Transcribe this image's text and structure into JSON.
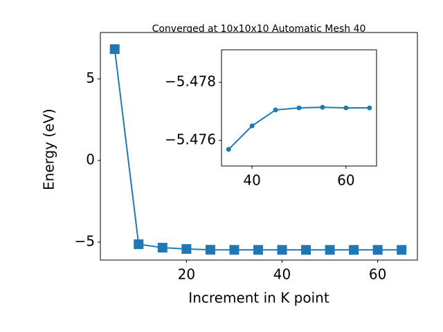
{
  "chart_data": [
    {
      "type": "line",
      "title": "Converged at 10x10x10 Automatic Mesh 40",
      "x_label": "Increment in K point",
      "y_label": "Energy (eV)",
      "x": [
        5,
        10,
        15,
        20,
        25,
        30,
        35,
        40,
        45,
        50,
        55,
        60,
        65
      ],
      "series": [
        {
          "color": "#1f77b4",
          "marker": "square",
          "values": [
            6.82,
            -5.13,
            -5.34,
            -5.42,
            -5.47,
            -5.4755,
            -5.47569,
            -5.4765,
            -5.47705,
            -5.47712,
            -5.47714,
            -5.47712,
            -5.47712
          ]
        }
      ],
      "xlim": [
        2,
        68.3
      ],
      "ylim": [
        -6.1,
        7.84
      ],
      "xticks": [
        20,
        40,
        60
      ],
      "yticks": [
        {
          "value": -5,
          "label": "−5"
        },
        0,
        5
      ]
    },
    {
      "type": "line",
      "x": [
        35,
        40,
        45,
        50,
        55,
        60,
        65
      ],
      "series": [
        {
          "color": "#1f77b4",
          "marker": "circle",
          "values": [
            -5.47569,
            -5.4765,
            -5.47705,
            -5.47712,
            -5.47714,
            -5.47712,
            -5.47712
          ]
        }
      ],
      "xlim": [
        33.5,
        66.5
      ],
      "ylim": [
        -5.47512,
        -5.47912
      ],
      "xticks": [
        40,
        60
      ],
      "yticks": [
        {
          "value": -5.476,
          "label": "−5.476"
        },
        {
          "value": -5.478,
          "label": "−5.478"
        }
      ]
    }
  ]
}
